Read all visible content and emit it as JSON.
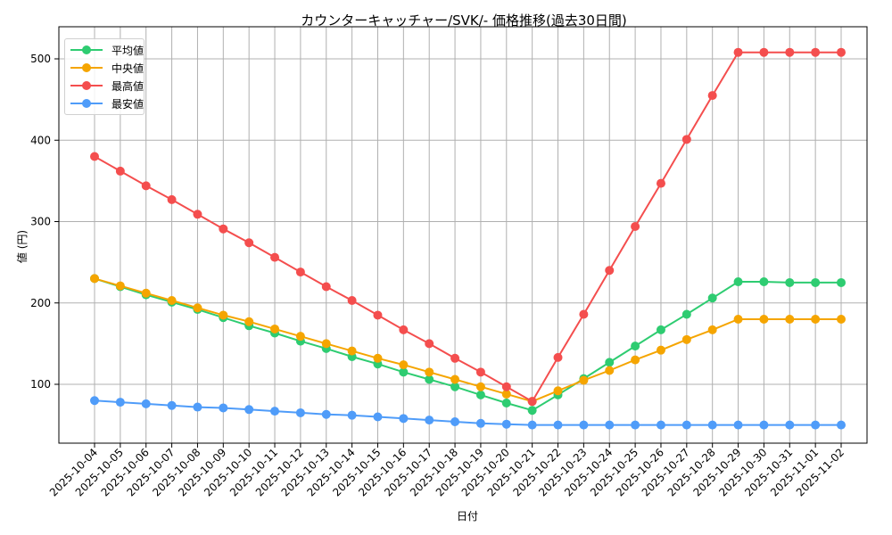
{
  "chart_data": {
    "type": "line",
    "title": "カウンターキャッチャー/SVK/- 価格推移(過去30日間)",
    "xlabel": "日付",
    "ylabel": "値 (円)",
    "ylim": [
      25,
      530
    ],
    "yticks": [
      100,
      200,
      300,
      400,
      500
    ],
    "grid": true,
    "legend_position": "upper left",
    "categories": [
      "2025-10-04",
      "2025-10-05",
      "2025-10-06",
      "2025-10-07",
      "2025-10-08",
      "2025-10-09",
      "2025-10-10",
      "2025-10-11",
      "2025-10-12",
      "2025-10-13",
      "2025-10-14",
      "2025-10-15",
      "2025-10-16",
      "2025-10-17",
      "2025-10-18",
      "2025-10-19",
      "2025-10-20",
      "2025-10-21",
      "2025-10-22",
      "2025-10-23",
      "2025-10-24",
      "2025-10-25",
      "2025-10-26",
      "2025-10-27",
      "2025-10-28",
      "2025-10-29",
      "2025-10-30",
      "2025-10-31",
      "2025-11-01",
      "2025-11-02"
    ],
    "series": [
      {
        "name": "平均値",
        "color": "#2ecc71",
        "values": [
          230,
          220,
          210,
          201,
          192,
          182,
          172,
          163,
          153,
          144,
          134,
          125,
          115,
          106,
          97,
          87,
          77,
          68,
          87,
          107,
          127,
          147,
          167,
          186,
          206,
          226,
          226,
          225,
          225,
          225
        ]
      },
      {
        "name": "中央値",
        "color": "#f5a500",
        "values": [
          230,
          221,
          212,
          203,
          194,
          185,
          177,
          168,
          159,
          150,
          141,
          132,
          124,
          115,
          106,
          97,
          88,
          79,
          92,
          105,
          117,
          130,
          142,
          155,
          167,
          180,
          180,
          180,
          180,
          180
        ]
      },
      {
        "name": "最高値",
        "color": "#f44e4e",
        "values": [
          380,
          362,
          344,
          327,
          309,
          291,
          274,
          256,
          238,
          220,
          203,
          185,
          167,
          150,
          132,
          115,
          97,
          79,
          133,
          186,
          240,
          294,
          347,
          401,
          455,
          508,
          508,
          508,
          508,
          508
        ]
      },
      {
        "name": "最安値",
        "color": "#4f9cf9",
        "values": [
          80,
          78,
          76,
          74,
          72,
          71,
          69,
          67,
          65,
          63,
          62,
          60,
          58,
          56,
          54,
          52,
          51,
          50,
          50,
          50,
          50,
          50,
          50,
          50,
          50,
          50,
          50,
          50,
          50,
          50
        ]
      }
    ]
  }
}
